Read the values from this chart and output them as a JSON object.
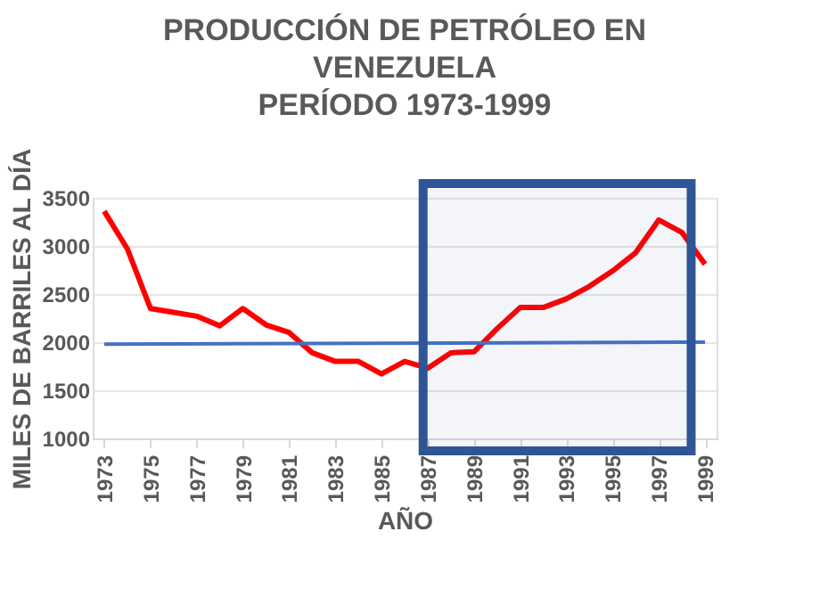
{
  "chart_data": {
    "type": "line",
    "title": [
      "PRODUCCIÓN DE PETRÓLEO EN",
      "VENEZUELA",
      "PERÍODO 1973-1999"
    ],
    "xlabel": "AÑO",
    "ylabel": "MILES DE BARRILES AL DÍA",
    "x": [
      1973,
      1974,
      1975,
      1976,
      1977,
      1978,
      1979,
      1980,
      1981,
      1982,
      1983,
      1984,
      1985,
      1986,
      1987,
      1988,
      1989,
      1990,
      1991,
      1992,
      1993,
      1994,
      1995,
      1996,
      1997,
      1998,
      1999
    ],
    "series": [
      {
        "color": "#ff0000",
        "values": [
          3360,
          2970,
          2350,
          2310,
          2270,
          2170,
          2350,
          2180,
          2100,
          1890,
          1800,
          1800,
          1670,
          1800,
          1730,
          1890,
          1900,
          2140,
          2360,
          2360,
          2450,
          2580,
          2740,
          2930,
          3270,
          3140,
          2810
        ]
      },
      {
        "color": "#4472c4",
        "x": [
          1973,
          1999
        ],
        "values": [
          1980,
          2000
        ]
      }
    ],
    "xlim": [
      1972.5,
      1999.5
    ],
    "xticks": [
      1973,
      1975,
      1977,
      1979,
      1981,
      1983,
      1985,
      1987,
      1989,
      1991,
      1993,
      1995,
      1997,
      1999
    ],
    "ylim": [
      1000,
      3500
    ],
    "yticks": [
      1000,
      1500,
      2000,
      2500,
      3000,
      3500
    ],
    "bands": [
      {
        "axis": "x",
        "from": 1986.8,
        "to": 1998.4,
        "color": "#2f5597"
      }
    ],
    "grid": "y"
  }
}
